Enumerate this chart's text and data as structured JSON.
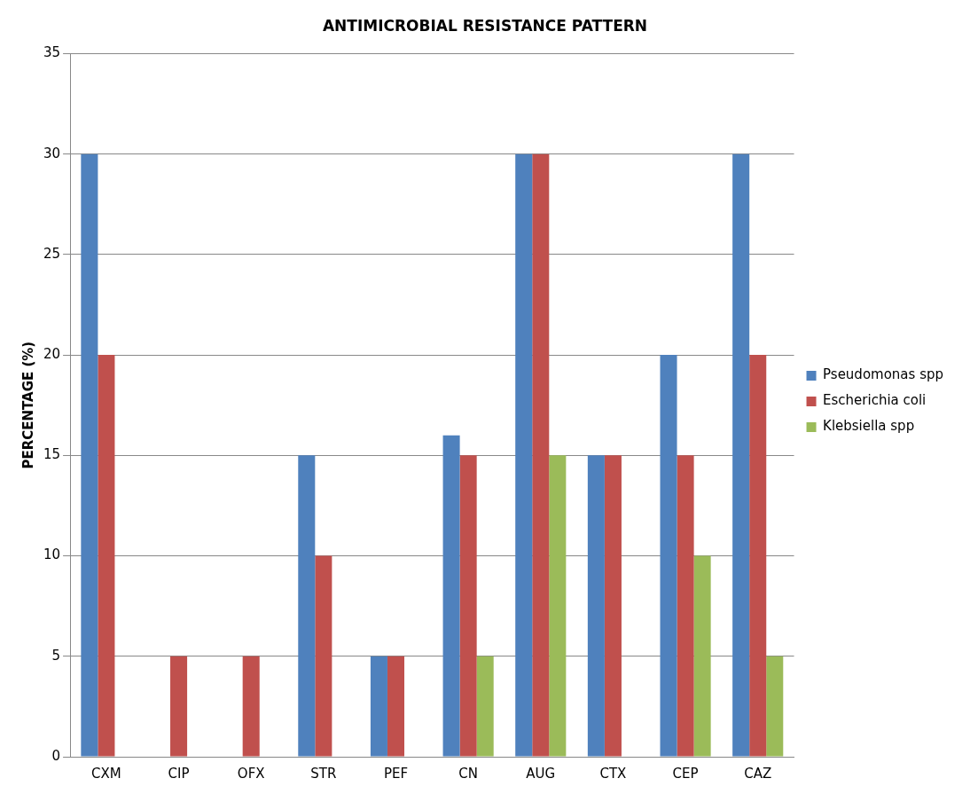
{
  "chart_data": {
    "type": "bar",
    "title": "ANTIMICROBIAL RESISTANCE PATTERN",
    "ylabel": "PERCENTAGE (%)",
    "categories": [
      "CXM",
      "CIP",
      "OFX",
      "STR",
      "PEF",
      "CN",
      "AUG",
      "CTX",
      "CEP",
      "CAZ"
    ],
    "series": [
      {
        "name": "Pseudomonas spp",
        "color": "#4f81bd",
        "values": [
          30,
          0,
          0,
          15,
          5,
          16,
          30,
          15,
          20,
          30
        ]
      },
      {
        "name": "Escherichia coli",
        "color": "#c0504d",
        "values": [
          20,
          5,
          5,
          10,
          5,
          15,
          30,
          15,
          15,
          20
        ]
      },
      {
        "name": "Klebsiella spp",
        "color": "#9bbb59",
        "values": [
          0,
          0,
          0,
          0,
          0,
          5,
          15,
          0,
          10,
          5
        ]
      }
    ],
    "ylim": [
      0,
      35
    ],
    "yticks": [
      0,
      5,
      10,
      15,
      20,
      25,
      30,
      35
    ],
    "grid": "y",
    "legend": "right"
  }
}
